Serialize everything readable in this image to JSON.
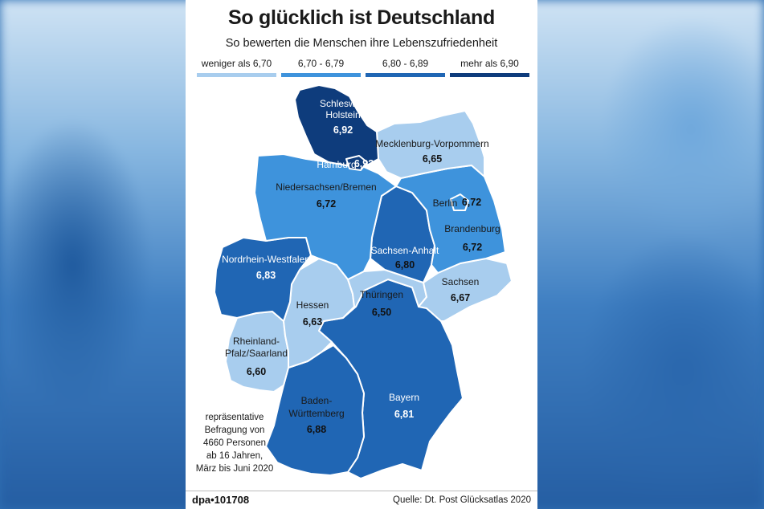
{
  "title": "So glücklich ist Deutschland",
  "subtitle": "So bewerten die Menschen ihre Lebenszufriedenheit",
  "legend": [
    {
      "label": "weniger als 6,70",
      "color": "#a8cdee"
    },
    {
      "label": "6,70 - 6,79",
      "color": "#3e93dc"
    },
    {
      "label": "6,80 - 6,89",
      "color": "#2066b4"
    },
    {
      "label": "mehr als 6,90",
      "color": "#0e3c7c"
    }
  ],
  "regions": {
    "sh": {
      "name_line1": "Schleswig-",
      "name_line2": "Holstein",
      "value": "6,92",
      "color": "#0e3c7c"
    },
    "hh": {
      "name": "Hamburg",
      "value": "6,92",
      "color": "#0e3c7c"
    },
    "mv": {
      "name": "Mecklenburg-Vorpommern",
      "value": "6,65",
      "color": "#a8cdee"
    },
    "ni": {
      "name": "Niedersachsen/Bremen",
      "value": "6,72",
      "color": "#3e93dc"
    },
    "be": {
      "name": "Berlin",
      "value": "6,72",
      "color": "#3e93dc"
    },
    "bb": {
      "name": "Brandenburg",
      "value": "6,72",
      "color": "#3e93dc"
    },
    "st": {
      "name": "Sachsen-Anhalt",
      "value": "6,80",
      "color": "#2066b4"
    },
    "nw": {
      "name": "Nordrhein-Westfalen",
      "value": "6,83",
      "color": "#2066b4"
    },
    "sn": {
      "name": "Sachsen",
      "value": "6,67",
      "color": "#a8cdee"
    },
    "he": {
      "name": "Hessen",
      "value": "6,63",
      "color": "#a8cdee"
    },
    "th": {
      "name": "Thüringen",
      "value": "6,50",
      "color": "#a8cdee"
    },
    "rp": {
      "name_line1": "Rheinland-",
      "name_line2": "Pfalz/Saarland",
      "value": "6,60",
      "color": "#a8cdee"
    },
    "bw": {
      "name_line1": "Baden-",
      "name_line2": "Württemberg",
      "value": "6,88",
      "color": "#2066b4"
    },
    "by": {
      "name": "Bayern",
      "value": "6,81",
      "color": "#2066b4"
    }
  },
  "note": [
    "repräsentative",
    "Befragung von",
    "4660 Personen",
    "ab 16 Jahren,",
    "März bis Juni 2020"
  ],
  "footer": {
    "agency": "dpa•101708",
    "source": "Quelle: Dt. Post Glücksatlas 2020"
  }
}
